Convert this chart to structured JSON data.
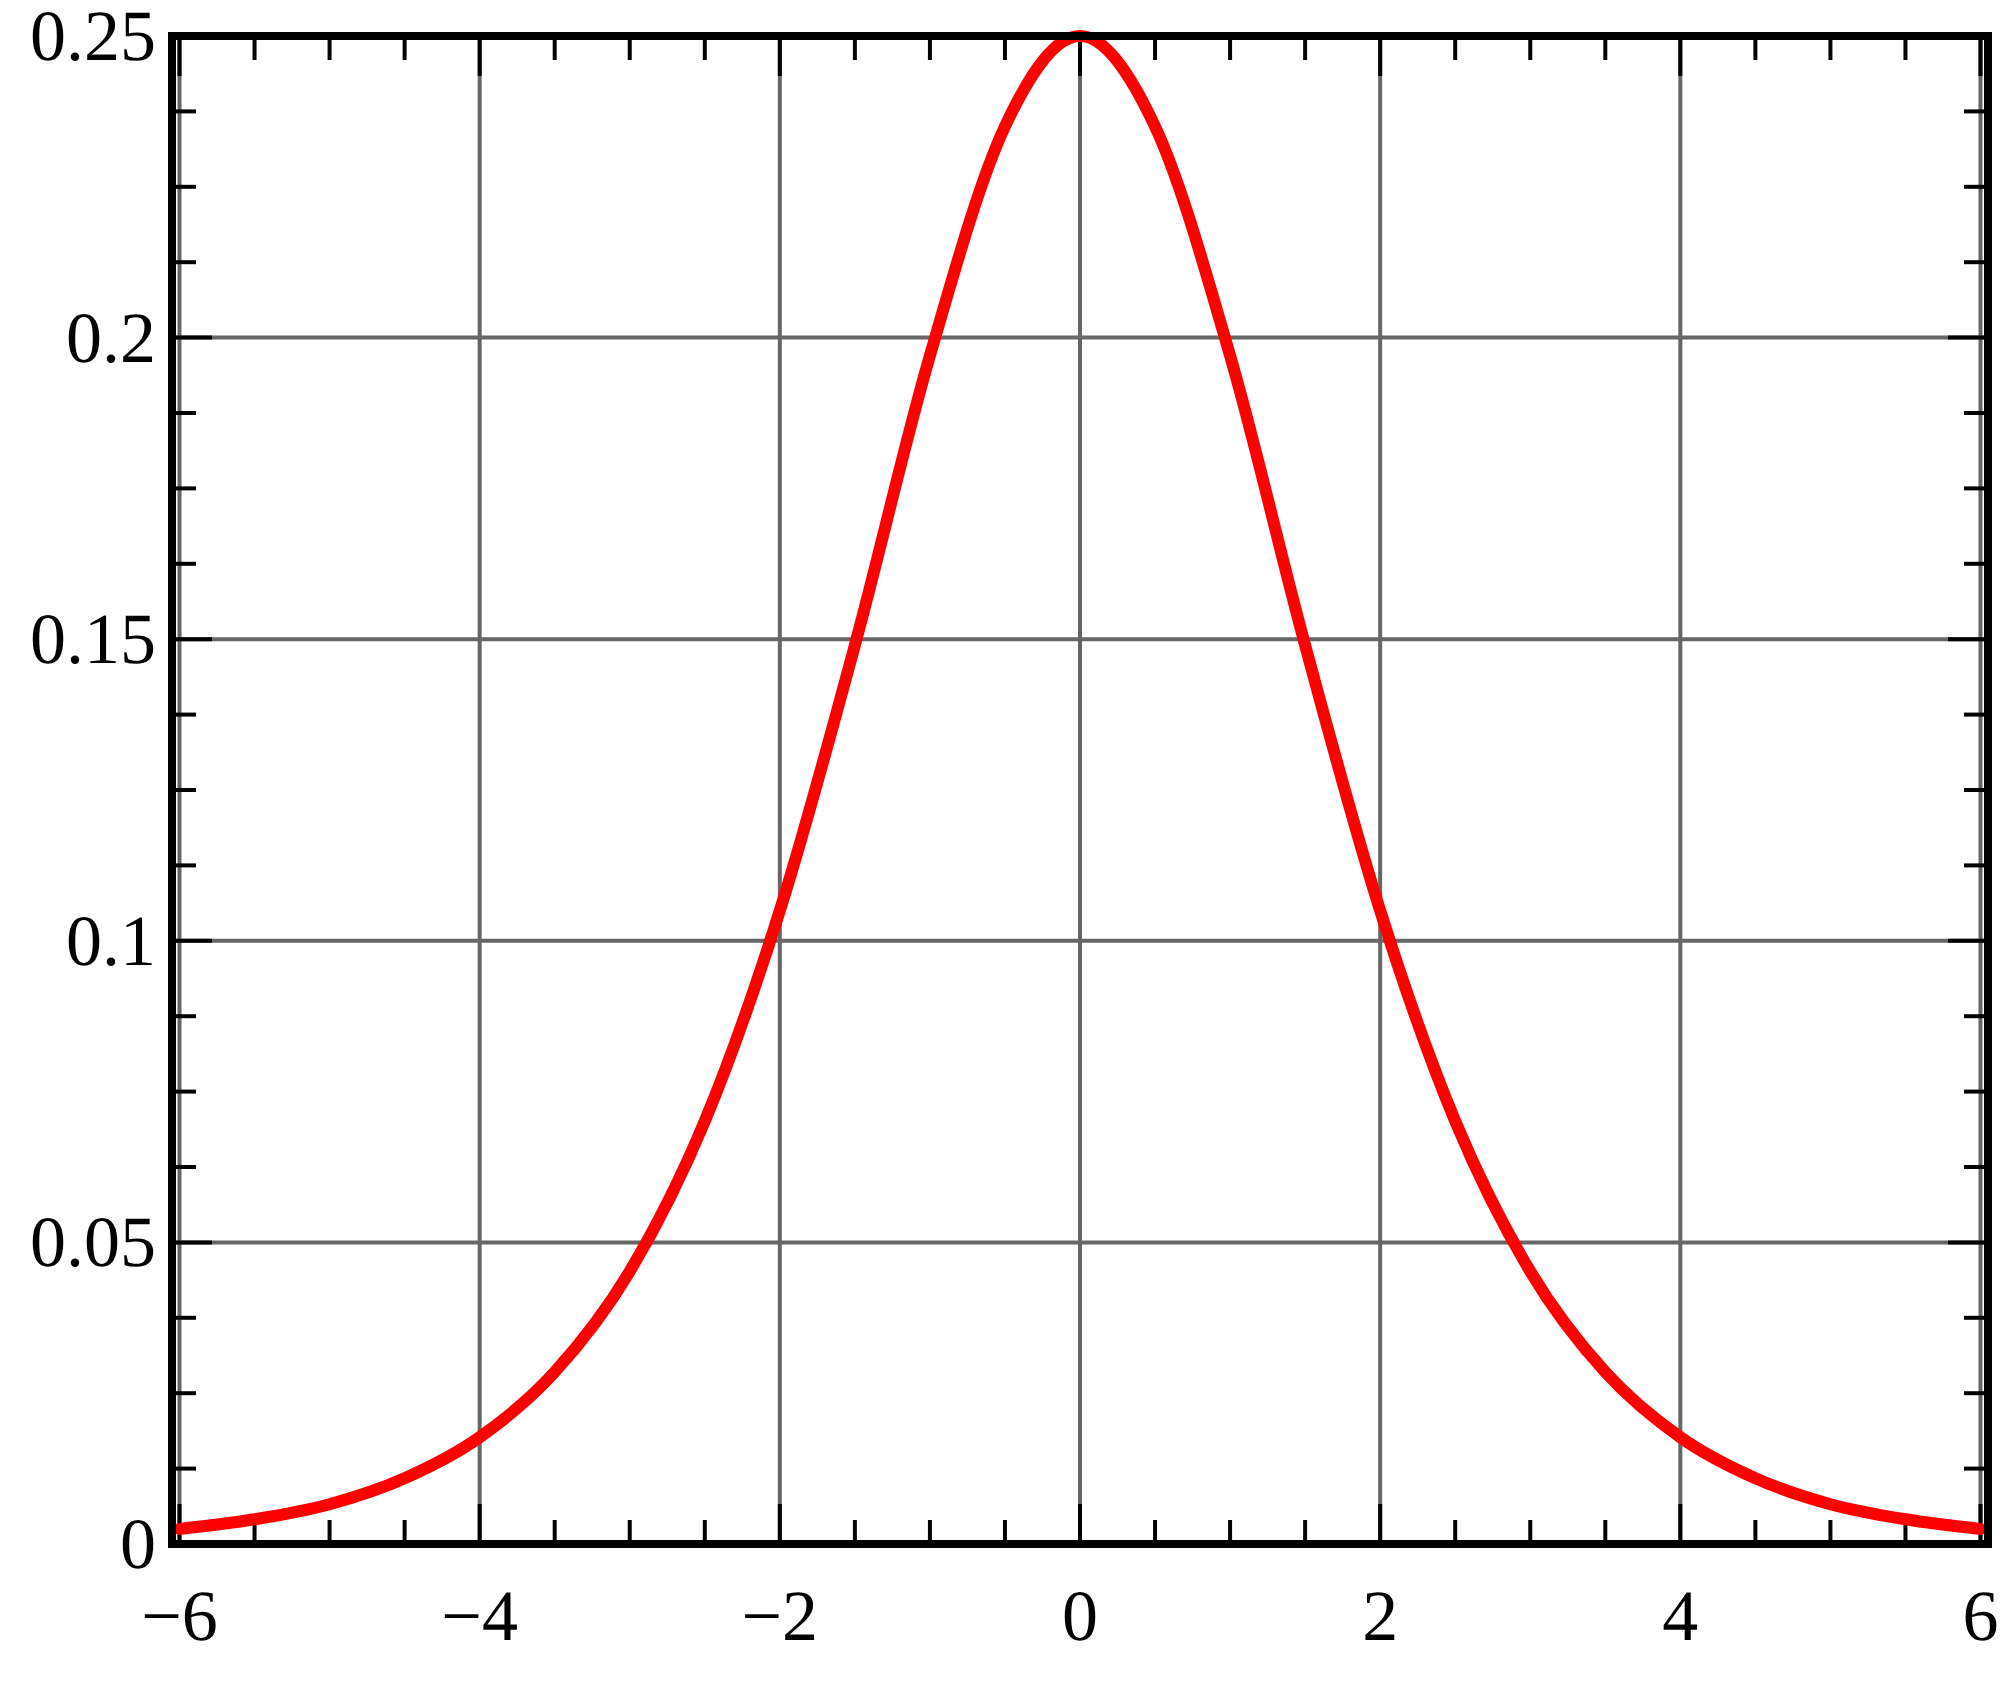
{
  "chart_data": {
    "type": "line",
    "x": [
      -6,
      -5.5,
      -5,
      -4.5,
      -4,
      -3.5,
      -3,
      -2.5,
      -2,
      -1.5,
      -1,
      -0.5,
      0,
      0.5,
      1,
      1.5,
      2,
      2.5,
      3,
      3.5,
      4,
      4.5,
      5,
      5.5,
      6
    ],
    "series": [
      {
        "color": "#ff0000",
        "values": [
          0.0025,
          0.0041,
          0.0066,
          0.0109,
          0.0177,
          0.0285,
          0.0452,
          0.0701,
          0.105,
          0.149,
          0.197,
          0.235,
          0.25,
          0.235,
          0.197,
          0.149,
          0.105,
          0.0701,
          0.0452,
          0.0285,
          0.0177,
          0.0109,
          0.0066,
          0.0041,
          0.0025
        ]
      }
    ],
    "xlim": [
      -6.05,
      6.05
    ],
    "ylim": [
      0,
      0.25
    ],
    "xticks": [
      {
        "value": -6,
        "label": "−6"
      },
      {
        "value": -5.5,
        "label": null
      },
      {
        "value": -5,
        "label": null
      },
      {
        "value": -4.5,
        "label": null
      },
      {
        "value": -4,
        "label": "−4"
      },
      {
        "value": -3.5,
        "label": null
      },
      {
        "value": -3,
        "label": null
      },
      {
        "value": -2.5,
        "label": null
      },
      {
        "value": -2,
        "label": "−2"
      },
      {
        "value": -1.5,
        "label": null
      },
      {
        "value": -1,
        "label": null
      },
      {
        "value": -0.5,
        "label": null
      },
      0,
      {
        "value": 0.5,
        "label": null
      },
      {
        "value": 1,
        "label": null
      },
      {
        "value": 1.5,
        "label": null
      },
      2,
      {
        "value": 2.5,
        "label": null
      },
      {
        "value": 3,
        "label": null
      },
      {
        "value": 3.5,
        "label": null
      },
      4,
      {
        "value": 4.5,
        "label": null
      },
      {
        "value": 5,
        "label": null
      },
      {
        "value": 5.5,
        "label": null
      },
      6
    ],
    "yticks": [
      0,
      {
        "value": 0.0125,
        "label": null
      },
      {
        "value": 0.025,
        "label": null
      },
      {
        "value": 0.0375,
        "label": null
      },
      0.05,
      {
        "value": 0.0625,
        "label": null
      },
      {
        "value": 0.075,
        "label": null
      },
      {
        "value": 0.0875,
        "label": null
      },
      0.1,
      {
        "value": 0.1125,
        "label": null
      },
      {
        "value": 0.125,
        "label": null
      },
      {
        "value": 0.1375,
        "label": null
      },
      0.15,
      {
        "value": 0.1625,
        "label": null
      },
      {
        "value": 0.175,
        "label": null
      },
      {
        "value": 0.1875,
        "label": null
      },
      0.2,
      {
        "value": 0.2125,
        "label": null
      },
      {
        "value": 0.225,
        "label": null
      },
      {
        "value": 0.2375,
        "label": null
      },
      0.25
    ],
    "grid": true,
    "line_style": "solid",
    "marker": "none"
  }
}
